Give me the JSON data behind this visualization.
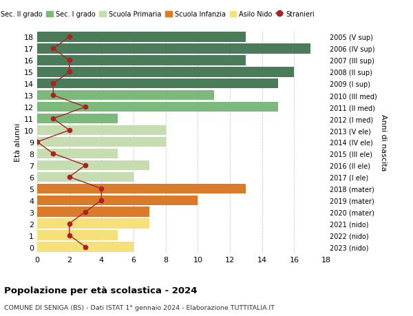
{
  "ages": [
    18,
    17,
    16,
    15,
    14,
    13,
    12,
    11,
    10,
    9,
    8,
    7,
    6,
    5,
    4,
    3,
    2,
    1,
    0
  ],
  "right_labels": [
    "2005 (V sup)",
    "2006 (IV sup)",
    "2007 (III sup)",
    "2008 (II sup)",
    "2009 (I sup)",
    "2010 (III med)",
    "2011 (II med)",
    "2012 (I med)",
    "2013 (V ele)",
    "2014 (IV ele)",
    "2015 (III ele)",
    "2016 (II ele)",
    "2017 (I ele)",
    "2018 (mater)",
    "2019 (mater)",
    "2020 (mater)",
    "2021 (nido)",
    "2022 (nido)",
    "2023 (nido)"
  ],
  "bar_values": [
    13,
    17,
    13,
    16,
    15,
    11,
    15,
    5,
    8,
    8,
    5,
    7,
    6,
    13,
    10,
    7,
    7,
    5,
    6
  ],
  "bar_colors": [
    "#4a7c59",
    "#4a7c59",
    "#4a7c59",
    "#4a7c59",
    "#4a7c59",
    "#7db87d",
    "#7db87d",
    "#7db87d",
    "#c5ddb0",
    "#c5ddb0",
    "#c5ddb0",
    "#c5ddb0",
    "#c5ddb0",
    "#d97b2a",
    "#d97b2a",
    "#d97b2a",
    "#f5e07a",
    "#f5e07a",
    "#f5e07a"
  ],
  "stranieri_values": [
    2,
    1,
    2,
    2,
    1,
    1,
    3,
    1,
    2,
    0,
    1,
    3,
    2,
    4,
    4,
    3,
    2,
    2,
    3
  ],
  "stranieri_color": "#aa2222",
  "legend_items": [
    {
      "label": "Sec. II grado",
      "color": "#4a7c59"
    },
    {
      "label": "Sec. I grado",
      "color": "#7db87d"
    },
    {
      "label": "Scuola Primaria",
      "color": "#c5ddb0"
    },
    {
      "label": "Scuola Infanzia",
      "color": "#d97b2a"
    },
    {
      "label": "Asilo Nido",
      "color": "#f5e07a"
    },
    {
      "label": "Stranieri",
      "color": "#aa2222"
    }
  ],
  "ylabel_left": "Età alunni",
  "ylabel_right": "Anni di nascita",
  "title": "Popolazione per età scolastica - 2024",
  "subtitle": "COMUNE DI SENIGA (BS) - Dati ISTAT 1° gennaio 2024 - Elaborazione TUTTITALIA.IT",
  "xlim": [
    0,
    18
  ],
  "background_color": "#ffffff",
  "grid_color": "#cccccc"
}
